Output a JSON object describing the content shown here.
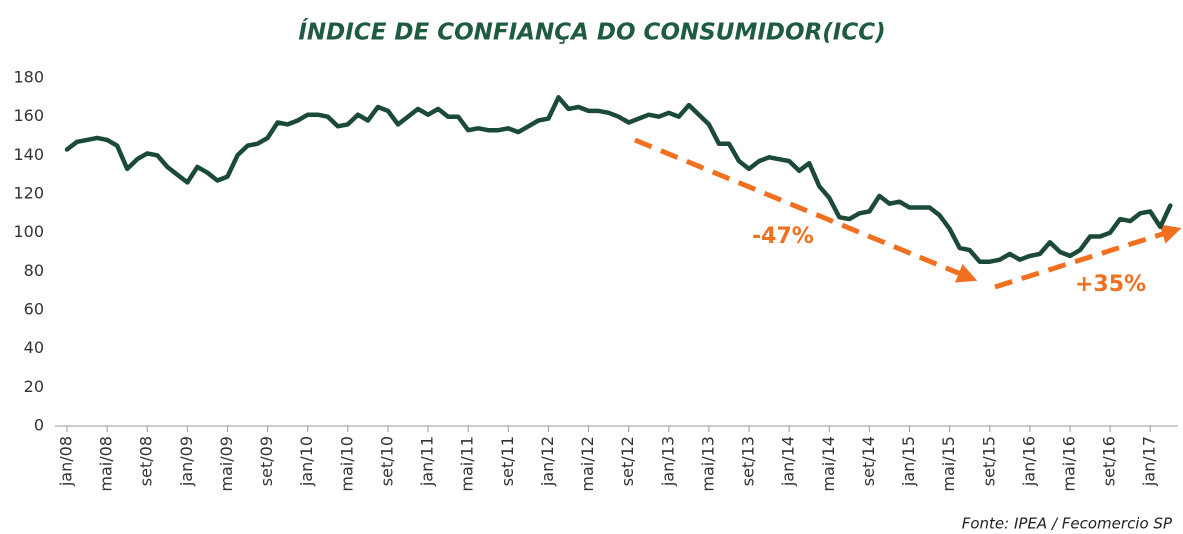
{
  "chart_data": {
    "type": "line",
    "title": "ÍNDICE DE CONFIANÇA DO CONSUMIDOR(ICC)",
    "source": "Fonte: IPEA / Fecomercio SP",
    "annotations": [
      "-47%",
      "+35%"
    ],
    "categories": [
      "jan/08",
      null,
      null,
      null,
      "mai/08",
      null,
      null,
      null,
      "set/08",
      null,
      null,
      null,
      "jan/09",
      null,
      null,
      null,
      "mai/09",
      null,
      null,
      null,
      "set/09",
      null,
      null,
      null,
      "jan/10",
      null,
      null,
      null,
      "mai/10",
      null,
      null,
      null,
      "set/10",
      null,
      null,
      null,
      "jan/11",
      null,
      null,
      null,
      "mai/11",
      null,
      null,
      null,
      "set/11",
      null,
      null,
      null,
      "jan/12",
      null,
      null,
      null,
      "mai/12",
      null,
      null,
      null,
      "set/12",
      null,
      null,
      null,
      "jan/13",
      null,
      null,
      null,
      "mai/13",
      null,
      null,
      null,
      "set/13",
      null,
      null,
      null,
      "jan/14",
      null,
      null,
      null,
      "mai/14",
      null,
      null,
      null,
      "set/14",
      null,
      null,
      null,
      "jan/15",
      null,
      null,
      null,
      "mai/15",
      null,
      null,
      null,
      "set/15",
      null,
      null,
      null,
      "jan/16",
      null,
      null,
      null,
      "mai/16",
      null,
      null,
      null,
      "set/16",
      null,
      null,
      null,
      "jan/17",
      null,
      null
    ],
    "values": [
      143,
      147,
      148,
      149,
      148,
      145,
      133,
      138,
      141,
      140,
      134,
      130,
      126,
      134,
      131,
      127,
      129,
      140,
      145,
      146,
      149,
      157,
      156,
      158,
      161,
      161,
      160,
      155,
      156,
      161,
      158,
      165,
      163,
      156,
      160,
      164,
      161,
      164,
      160,
      160,
      153,
      154,
      153,
      153,
      154,
      152,
      155,
      158,
      159,
      170,
      164,
      165,
      163,
      163,
      162,
      160,
      157,
      159,
      161,
      160,
      162,
      160,
      166,
      161,
      156,
      146,
      146,
      137,
      133,
      137,
      139,
      138,
      137,
      132,
      136,
      124,
      118,
      108,
      107,
      110,
      111,
      119,
      115,
      116,
      113,
      113,
      113,
      109,
      102,
      92,
      91,
      85,
      85,
      86,
      89,
      86,
      88,
      89,
      95,
      90,
      88,
      91,
      98,
      98,
      100,
      107,
      106,
      110,
      111,
      103,
      114
    ],
    "color": "#1b4a36",
    "ylim": [
      0,
      180
    ],
    "yticks": [
      0,
      20,
      40,
      60,
      80,
      100,
      120,
      140,
      160,
      180
    ],
    "grid": false
  }
}
